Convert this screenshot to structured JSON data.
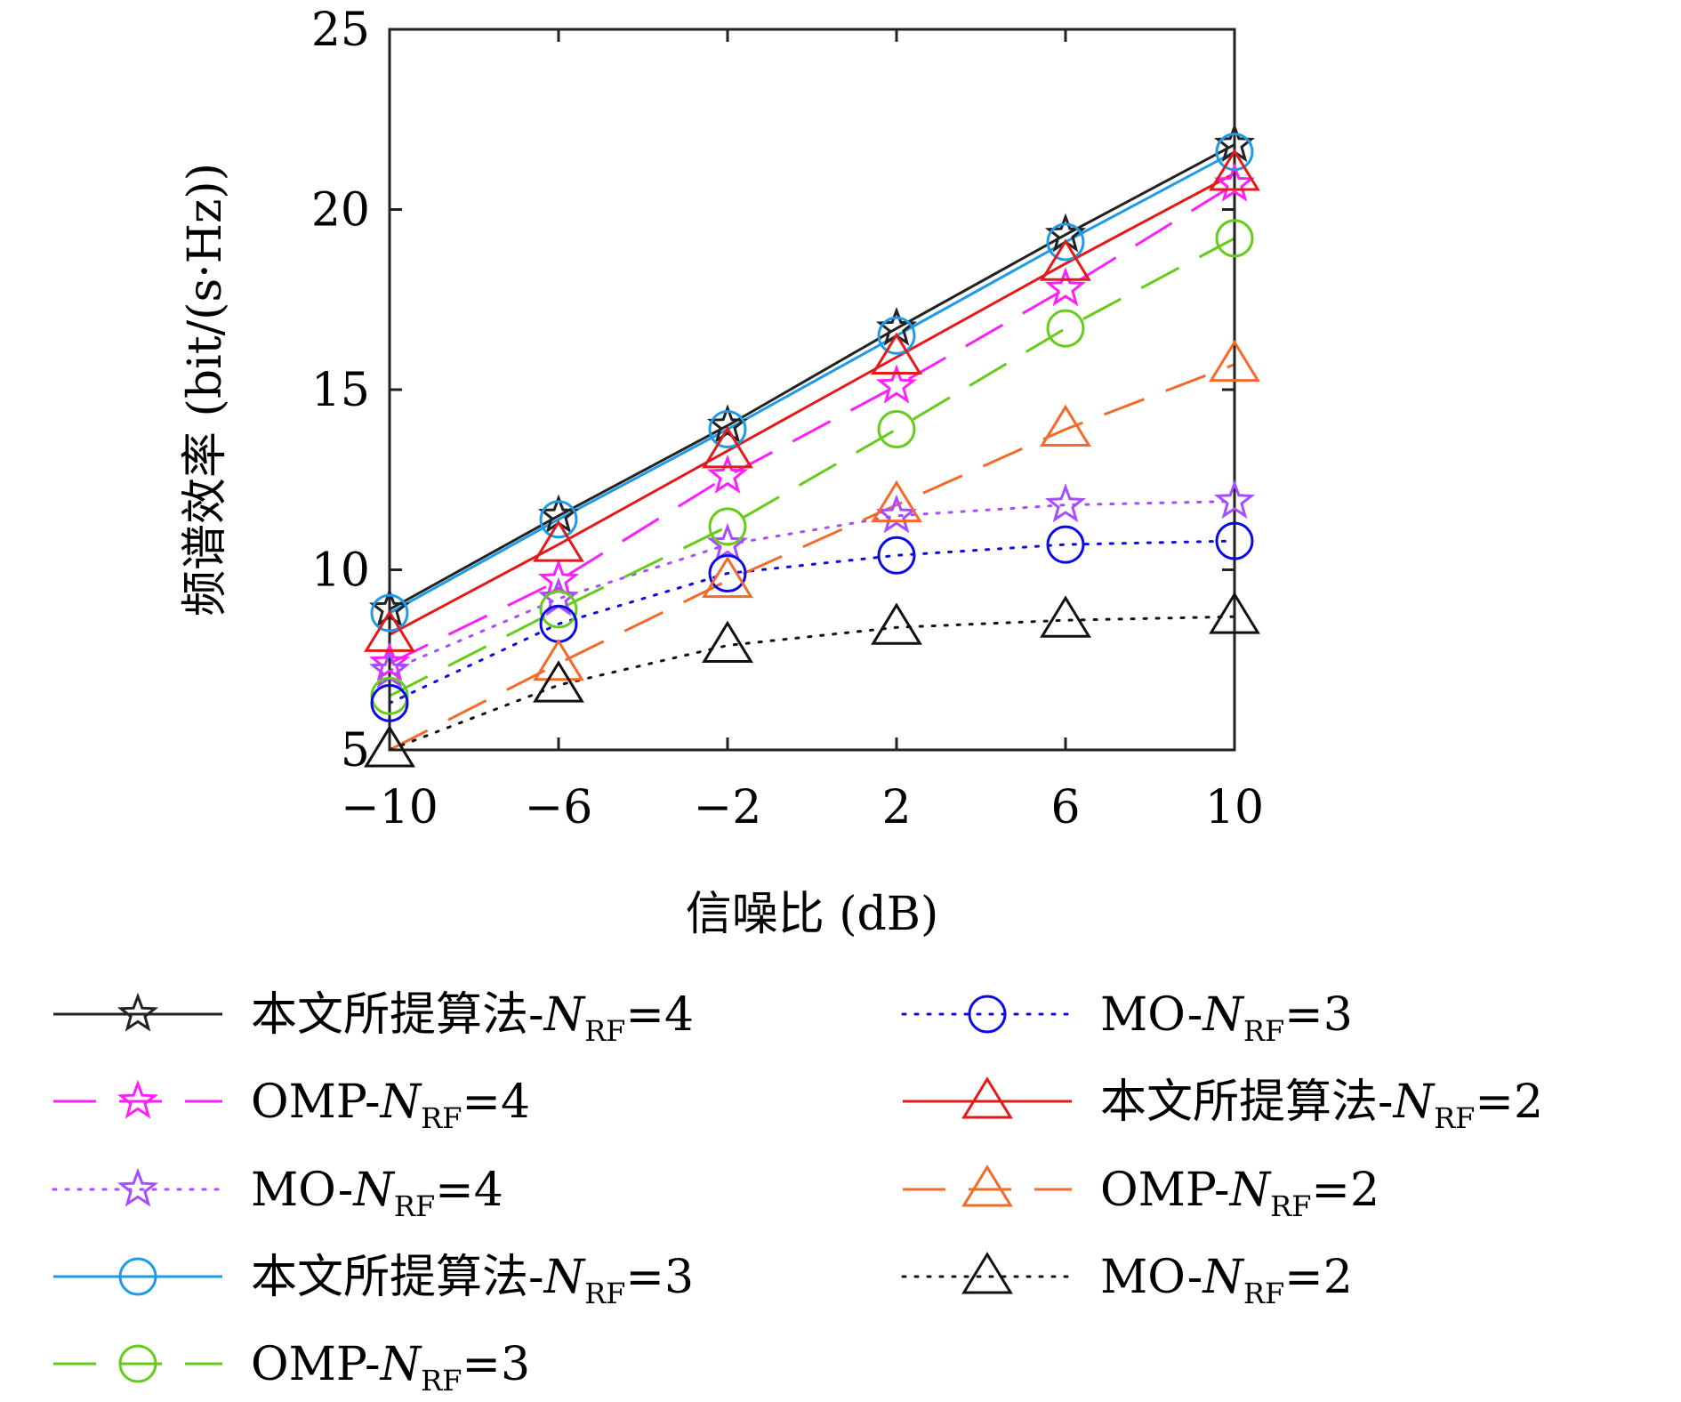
{
  "chart_data": {
    "type": "line",
    "xlabel": "信噪比 (dB)",
    "ylabel": "频谱效率 (bit/(s·Hz))",
    "x": [
      -10,
      -6,
      -2,
      2,
      6,
      10
    ],
    "xticks": [
      -10,
      -6,
      -2,
      2,
      6,
      10
    ],
    "xtick_labels": [
      "−10",
      "−6",
      "−2",
      "2",
      "6",
      "10"
    ],
    "yticks": [
      5,
      10,
      15,
      20,
      25
    ],
    "xlim": [
      -10,
      10
    ],
    "ylim": [
      5,
      25
    ],
    "grid": false,
    "legend_position": "bottom",
    "series": [
      {
        "name_prefix": "本文所提算法-",
        "name_suffix": "=4",
        "color": "#222222",
        "line": "solid",
        "marker": "star",
        "values": [
          8.9,
          11.5,
          14.0,
          16.7,
          19.3,
          21.8
        ]
      },
      {
        "name_prefix": "OMP-",
        "name_suffix": "=4",
        "color": "#ff1eff",
        "line": "dashed",
        "marker": "star",
        "values": [
          7.4,
          9.7,
          12.6,
          15.1,
          17.8,
          20.7
        ]
      },
      {
        "name_prefix": "MO-",
        "name_suffix": "=4",
        "color": "#a64dff",
        "line": "dotted",
        "marker": "star",
        "values": [
          7.2,
          9.2,
          10.7,
          11.5,
          11.8,
          11.9
        ]
      },
      {
        "name_prefix": "本文所提算法-",
        "name_suffix": "=3",
        "color": "#1e9be6",
        "line": "solid",
        "marker": "circle",
        "values": [
          8.8,
          11.4,
          13.9,
          16.5,
          19.1,
          21.6
        ]
      },
      {
        "name_prefix": "OMP-",
        "name_suffix": "=3",
        "color": "#66cc1a",
        "line": "dashed",
        "marker": "circle",
        "values": [
          6.5,
          8.9,
          11.2,
          13.9,
          16.7,
          19.2
        ]
      },
      {
        "name_prefix": "MO-",
        "name_suffix": "=3",
        "color": "#0a0ae6",
        "line": "dotted",
        "marker": "circle",
        "values": [
          6.3,
          8.5,
          9.9,
          10.4,
          10.7,
          10.8
        ]
      },
      {
        "name_prefix": "本文所提算法-",
        "name_suffix": "=2",
        "color": "#e61919",
        "line": "solid",
        "marker": "triangle",
        "values": [
          8.2,
          10.7,
          13.3,
          15.9,
          18.5,
          21.0
        ]
      },
      {
        "name_prefix": "OMP-",
        "name_suffix": "=2",
        "color": "#f26b2b",
        "line": "dashed",
        "marker": "triangle",
        "values": [
          5.0,
          7.4,
          9.7,
          11.8,
          13.9,
          15.7
        ]
      },
      {
        "name_prefix": "MO-",
        "name_suffix": "=2",
        "color": "#111111",
        "line": "dotted",
        "marker": "triangle",
        "values": [
          5.0,
          6.8,
          7.9,
          8.4,
          8.6,
          8.7
        ]
      }
    ],
    "legend_symbol": {
      "main": "N",
      "sub": "RF"
    }
  }
}
